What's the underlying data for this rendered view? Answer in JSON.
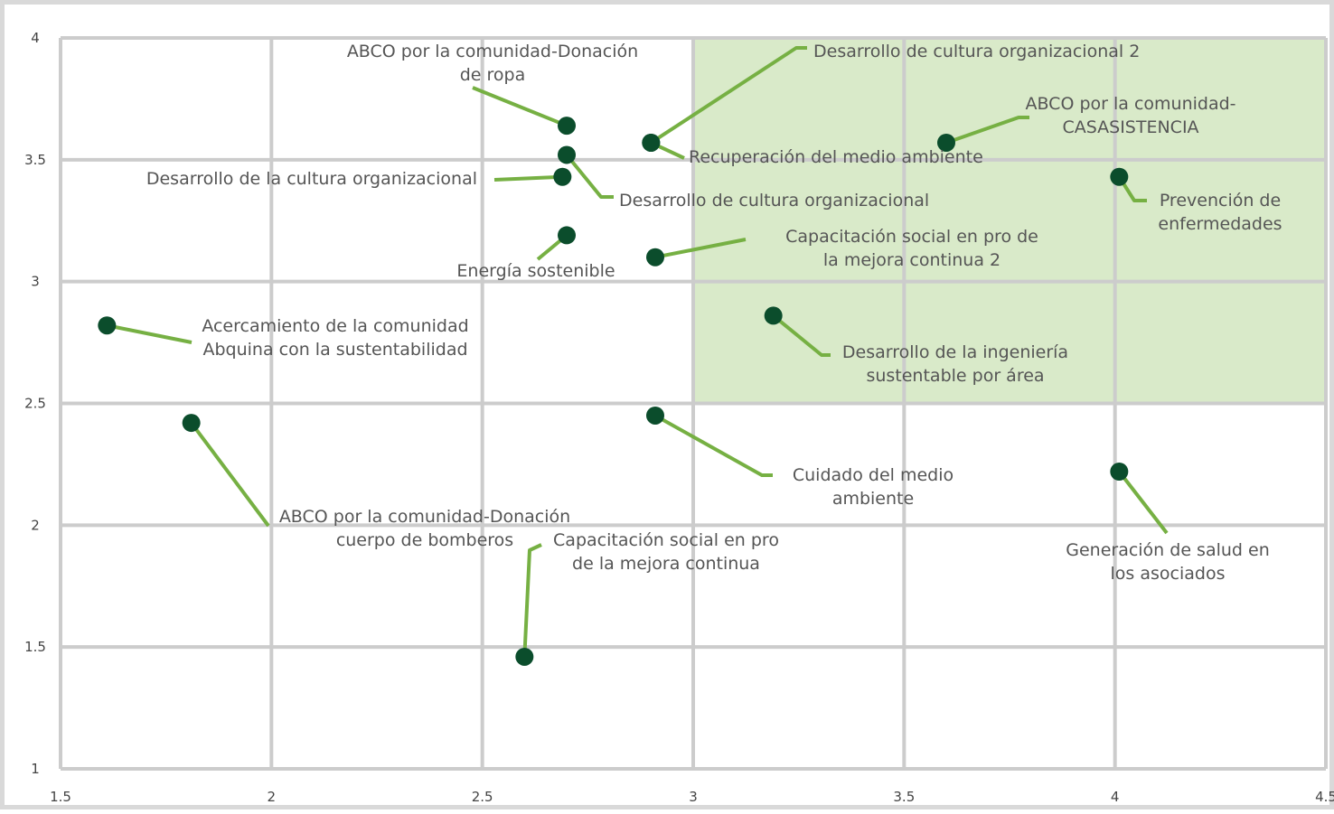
{
  "chart_data": {
    "type": "scatter",
    "title": "",
    "xlabel": "",
    "ylabel": "",
    "xlim": [
      1.5,
      4.5
    ],
    "ylim": [
      1,
      4
    ],
    "x_ticks": [
      "1.5",
      "2",
      "2.5",
      "3",
      "3.5",
      "4",
      "4.5"
    ],
    "y_ticks": [
      "1",
      "1.5",
      "2",
      "2.5",
      "3",
      "3.5",
      "4"
    ],
    "grid": true,
    "highlight_region": {
      "x": [
        3,
        4.5
      ],
      "y": [
        2.5,
        4
      ],
      "color": "#d9eac9"
    },
    "colors": {
      "marker": "#0b4d2c",
      "leader": "#76b043",
      "grid": "#cccccc",
      "text": "#555555"
    },
    "points": [
      {
        "x": 2.7,
        "y": 3.64,
        "label": [
          "ABCO por la comunidad-Donación",
          "de ropa"
        ]
      },
      {
        "x": 2.9,
        "y": 3.57,
        "label": [
          "Desarrollo de cultura organizacional 2"
        ]
      },
      {
        "x": 2.9,
        "y": 3.57,
        "label": [
          "Recuperación del medio ambiente"
        ]
      },
      {
        "x": 3.6,
        "y": 3.57,
        "label": [
          "ABCO por la comunidad-",
          "CASASISTENCIA"
        ]
      },
      {
        "x": 2.7,
        "y": 3.52,
        "label": [
          "Desarrollo de cultura organizacional"
        ]
      },
      {
        "x": 2.69,
        "y": 3.43,
        "label": [
          "Desarrollo de la cultura organizacional"
        ]
      },
      {
        "x": 4.01,
        "y": 3.43,
        "label": [
          "Prevención de",
          "enfermedades"
        ]
      },
      {
        "x": 2.7,
        "y": 3.19,
        "label": [
          "Energía sostenible"
        ]
      },
      {
        "x": 2.91,
        "y": 3.1,
        "label": [
          "Capacitación social en pro de",
          "la mejora continua 2"
        ]
      },
      {
        "x": 3.19,
        "y": 2.86,
        "label": [
          "Desarrollo de la ingeniería",
          "sustentable por área"
        ]
      },
      {
        "x": 1.61,
        "y": 2.82,
        "label": [
          "Acercamiento de la comunidad",
          "Abquina con la sustentabilidad"
        ]
      },
      {
        "x": 2.91,
        "y": 2.45,
        "label": [
          "Cuidado del medio",
          "ambiente"
        ]
      },
      {
        "x": 1.81,
        "y": 2.42,
        "label": [
          "ABCO por la comunidad-Donación",
          "cuerpo de bomberos"
        ]
      },
      {
        "x": 4.01,
        "y": 2.22,
        "label": [
          "Generación de salud en",
          "los asociados"
        ]
      },
      {
        "x": 2.6,
        "y": 1.46,
        "label": [
          "Capacitación social en pro",
          "de la mejora continua"
        ]
      }
    ]
  }
}
